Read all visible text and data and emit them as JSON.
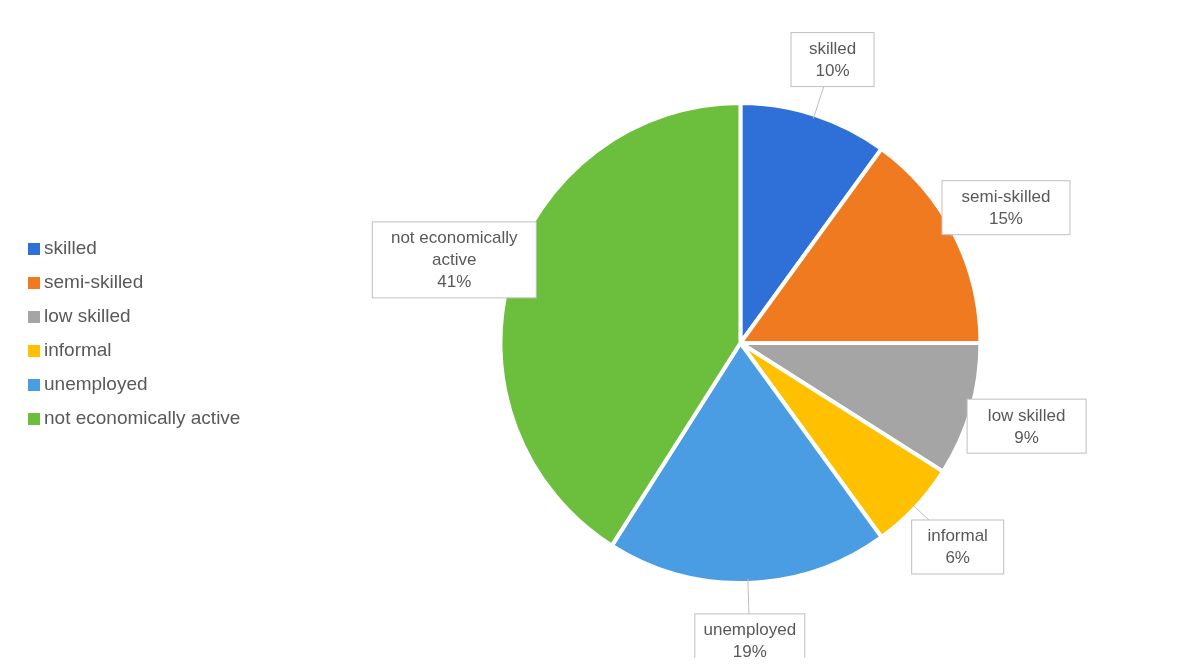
{
  "chart_data": {
    "type": "pie",
    "categories": [
      "skilled",
      "semi-skilled",
      "low skilled",
      "informal",
      "unemployed",
      "not economically active"
    ],
    "values": [
      10,
      15,
      9,
      6,
      19,
      41
    ],
    "value_labels": [
      "10%",
      "15%",
      "9%",
      "6%",
      "19%",
      "41%"
    ],
    "colors": [
      "#2f6fd8",
      "#f07a20",
      "#a5a5a5",
      "#ffc000",
      "#4a9de2",
      "#6cbf3c"
    ],
    "legend": "left"
  }
}
